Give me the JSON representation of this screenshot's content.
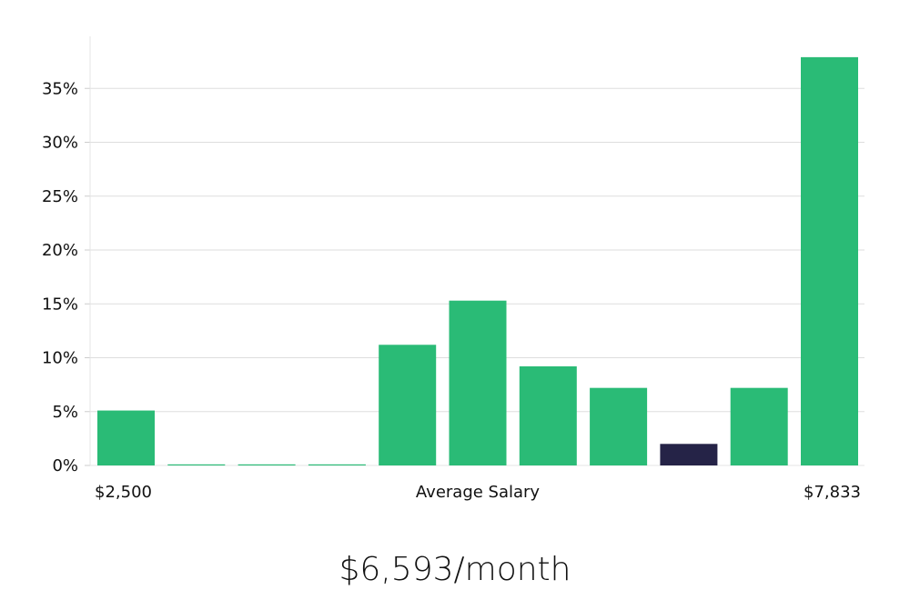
{
  "chart_data": {
    "type": "bar",
    "title": "",
    "xlabel": "Average Salary",
    "ylabel": "",
    "x_range_labels": {
      "min": "$2,500",
      "max": "$7,833"
    },
    "ylim": [
      0,
      40
    ],
    "yticks": [
      0,
      5,
      10,
      15,
      20,
      25,
      30,
      35
    ],
    "ytick_labels": [
      "0%",
      "5%",
      "10%",
      "15%",
      "20%",
      "25%",
      "30%",
      "35%"
    ],
    "values": [
      5.1,
      0.1,
      0.1,
      0.1,
      11.2,
      15.3,
      9.2,
      7.2,
      2.0,
      7.2,
      37.9
    ],
    "highlight_index": 8,
    "grid": true,
    "colors": {
      "bar": "#2abb76",
      "highlight": "#252347",
      "grid": "#dddddd",
      "axis": "#e4e4e4"
    }
  },
  "headline": "$6,593/month"
}
